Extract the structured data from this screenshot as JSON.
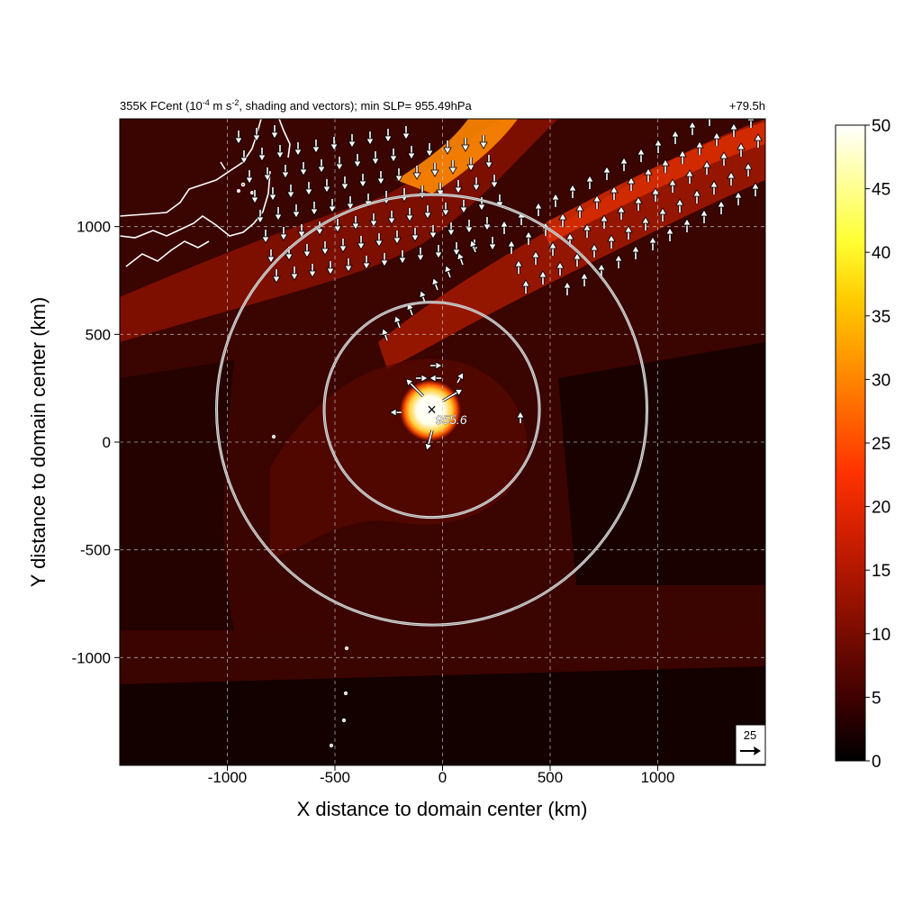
{
  "chart_data": {
    "type": "heatmap",
    "title_main": "355K FCent (10",
    "title_exp1": "-4",
    "title_mid": " m s",
    "title_exp2": "-2",
    "title_tail": ", shading and vectors); min SLP= 955.49hPa",
    "forecast_hour": "+79.5h",
    "xlabel": "X distance to domain center (km)",
    "ylabel": "Y distance to domain center (km)",
    "xlim": [
      -1500,
      1500
    ],
    "ylim": [
      -1500,
      1500
    ],
    "x_ticks": [
      -1000,
      -500,
      0,
      500,
      1000
    ],
    "y_ticks": [
      -1000,
      -500,
      0,
      500,
      1000
    ],
    "x_tick_labels": [
      "-1000",
      "-500",
      "0",
      "500",
      "1000"
    ],
    "y_tick_labels": [
      "-1000",
      "-500",
      "0",
      "500",
      "1000"
    ],
    "colorbar": {
      "min": 0,
      "max": 50,
      "ticks": [
        0,
        5,
        10,
        15,
        20,
        25,
        30,
        35,
        40,
        45,
        50
      ],
      "tick_labels": [
        "0",
        "5",
        "10",
        "15",
        "20",
        "25",
        "30",
        "35",
        "40",
        "45",
        "50"
      ],
      "colors": [
        "#000000",
        "#3a0000",
        "#6e0a00",
        "#a31400",
        "#d42000",
        "#ff3300",
        "#ff6600",
        "#ff9900",
        "#ffcc00",
        "#ffff33",
        "#ffff99",
        "#ffffff"
      ]
    },
    "storm_center": {
      "x": -50,
      "y": 150,
      "marker": "×",
      "label": "955.6"
    },
    "range_rings_km": [
      500,
      1000
    ],
    "reference_vector": {
      "label": "25",
      "magnitude": 25
    },
    "grid": true,
    "field_background": "#3a0400"
  }
}
